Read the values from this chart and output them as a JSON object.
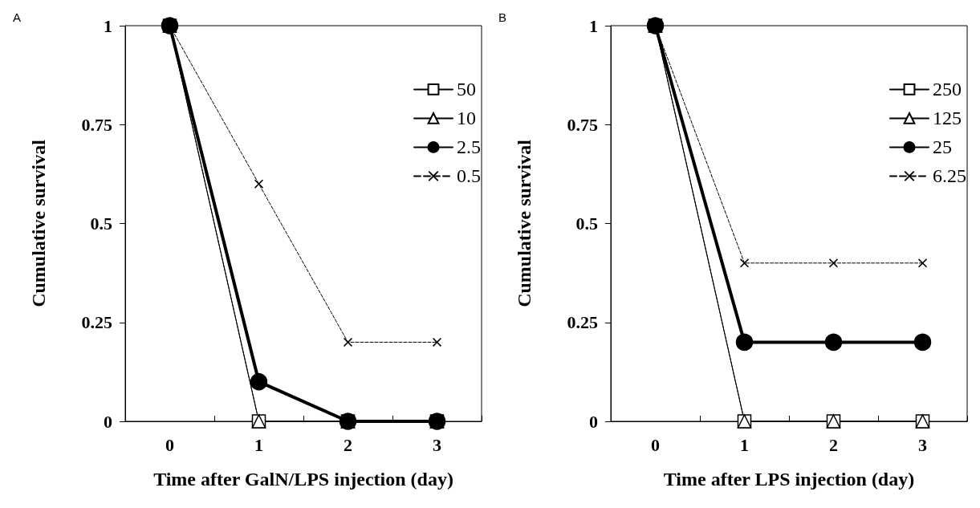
{
  "chart_data": [
    {
      "type": "line",
      "annotations": [
        "A"
      ],
      "xlabel": "Time after GalN/LPS injection (day)",
      "ylabel": "Cumulative survival",
      "categories": [
        "0",
        "1",
        "2",
        "3"
      ],
      "ylim": [
        0,
        1
      ],
      "yticks": [
        0,
        0.25,
        0.5,
        0.75,
        1
      ],
      "grid": false,
      "legend": "top right",
      "series": [
        {
          "name": "50",
          "color": "#000000",
          "marker": "square",
          "line_style": "solid",
          "values": [
            1,
            0,
            0,
            0
          ]
        },
        {
          "name": "10",
          "color": "#000000",
          "marker": "triangle",
          "line_style": "solid",
          "values": [
            1,
            0,
            0,
            0
          ]
        },
        {
          "name": "2.5",
          "color": "#000000",
          "marker": "circle",
          "line_style": "solid",
          "values": [
            1,
            0.1,
            0,
            0
          ]
        },
        {
          "name": "0.5",
          "color": "#000000",
          "marker": "cross",
          "line_style": "dashed",
          "values": [
            1,
            0.6,
            0.2,
            0.2
          ]
        }
      ]
    },
    {
      "type": "line",
      "annotations": [
        "B"
      ],
      "xlabel": "Time after LPS injection (day)",
      "ylabel": "Cumulative survival",
      "categories": [
        "0",
        "1",
        "2",
        "3"
      ],
      "ylim": [
        0,
        1
      ],
      "yticks": [
        0,
        0.25,
        0.5,
        0.75,
        1
      ],
      "grid": false,
      "legend": "top right",
      "series": [
        {
          "name": "250",
          "color": "#000000",
          "marker": "square",
          "line_style": "solid",
          "values": [
            1,
            0,
            0,
            0
          ]
        },
        {
          "name": "125",
          "color": "#000000",
          "marker": "triangle",
          "line_style": "solid",
          "values": [
            1,
            0,
            0,
            0
          ]
        },
        {
          "name": "25",
          "color": "#000000",
          "marker": "circle",
          "line_style": "solid",
          "values": [
            1,
            0.2,
            0.2,
            0.2
          ]
        },
        {
          "name": "6.25",
          "color": "#000000",
          "marker": "cross",
          "line_style": "dashed",
          "values": [
            1,
            0.4,
            0.4,
            0.4
          ]
        }
      ]
    }
  ]
}
